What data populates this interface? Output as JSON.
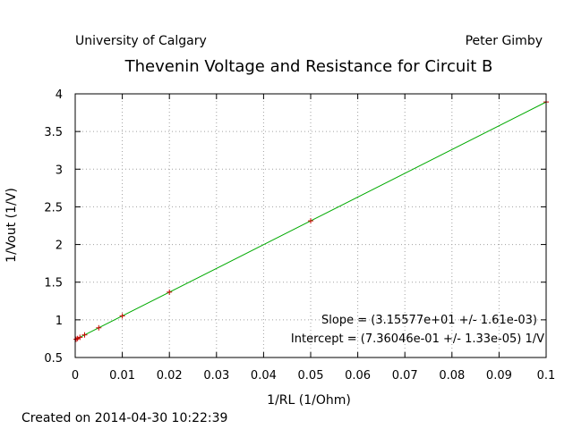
{
  "header": {
    "left": "University of Calgary",
    "right": "Peter Gimby"
  },
  "footer": {
    "created": "Created on 2014-04-30 10:22:39"
  },
  "colors": {
    "fit_line": "#00aa00",
    "data_points": "#cc0000",
    "grid": "#a0a0a0"
  },
  "chart_data": {
    "type": "scatter",
    "title": "Thevenin Voltage and Resistance for Circuit B",
    "xlabel": "1/RL (1/Ohm)",
    "ylabel": "1/Vout (1/V)",
    "xlim": [
      0,
      0.1
    ],
    "ylim": [
      0.5,
      4
    ],
    "x_ticks": [
      "0",
      "0.01",
      "0.02",
      "0.03",
      "0.04",
      "0.05",
      "0.06",
      "0.07",
      "0.08",
      "0.09",
      "0.1"
    ],
    "y_ticks": [
      "0.5",
      "1",
      "1.5",
      "2",
      "2.5",
      "3",
      "3.5",
      "4"
    ],
    "grid": true,
    "series": [
      {
        "kind": "points",
        "marker": "+",
        "x": [
          0.0002,
          0.0005,
          0.001,
          0.002,
          0.005,
          0.01,
          0.02,
          0.05,
          0.1
        ],
        "y": [
          0.742,
          0.752,
          0.768,
          0.8,
          0.894,
          1.052,
          1.368,
          2.314,
          3.892
        ]
      },
      {
        "kind": "fit",
        "slope": 31.5577,
        "intercept": 0.736046
      }
    ],
    "annotations": [
      "Slope = (3.15577e+01 +/- 1.61e-03)",
      "Intercept = (7.36046e-01 +/- 1.33e-05) 1/V"
    ]
  }
}
